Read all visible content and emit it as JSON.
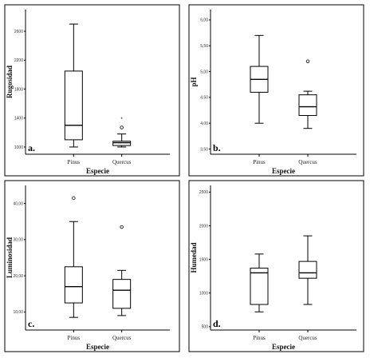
{
  "chart_data": [
    {
      "type": "boxplot",
      "panel_label": "a.",
      "ylabel": "Rugosidad",
      "xlabel": "Especie",
      "categories": [
        "Pinus",
        "Quercus"
      ],
      "ylim": [
        900,
        2900
      ],
      "yticks": [
        1000,
        1400,
        1800,
        2200,
        2600
      ],
      "tick_labels": [
        "1000",
        "1400",
        "1800",
        "2200",
        "2600"
      ],
      "boxes": [
        {
          "category": "Pinus",
          "min": 1000,
          "q1": 1100,
          "median": 1300,
          "q3": 2050,
          "max": 2700,
          "outliers": [],
          "extremes": []
        },
        {
          "category": "Quercus",
          "min": 1000,
          "q1": 1020,
          "median": 1060,
          "q3": 1080,
          "max": 1180,
          "outliers": [
            1270
          ],
          "extremes": [
            1390
          ]
        }
      ]
    },
    {
      "type": "boxplot",
      "panel_label": "b.",
      "ylabel": "pH",
      "xlabel": "Especie",
      "categories": [
        "Pinus",
        "Quercus"
      ],
      "ylim": [
        3.4,
        6.2
      ],
      "yticks": [
        3.5,
        4.0,
        4.5,
        5.0,
        5.5,
        6.0
      ],
      "tick_labels": [
        "3,50",
        "4,00",
        "4,50",
        "5,00",
        "5,50",
        "6,00"
      ],
      "boxes": [
        {
          "category": "Pinus",
          "min": 4.0,
          "q1": 4.6,
          "median": 4.85,
          "q3": 5.1,
          "max": 5.7,
          "outliers": [],
          "extremes": []
        },
        {
          "category": "Quercus",
          "min": 3.9,
          "q1": 4.15,
          "median": 4.32,
          "q3": 4.55,
          "max": 4.62,
          "outliers": [
            5.2
          ],
          "extremes": []
        }
      ]
    },
    {
      "type": "boxplot",
      "panel_label": "c.",
      "ylabel": "Luminosidad",
      "xlabel": "Especie",
      "categories": [
        "Pinus",
        "Quercus"
      ],
      "ylim": [
        5,
        45
      ],
      "yticks": [
        10,
        20,
        30,
        40
      ],
      "tick_labels": [
        "10,00",
        "20,00",
        "30,00",
        "40,00"
      ],
      "boxes": [
        {
          "category": "Pinus",
          "min": 8.5,
          "q1": 12.5,
          "median": 17,
          "q3": 22.5,
          "max": 35,
          "outliers": [
            41.5
          ],
          "extremes": []
        },
        {
          "category": "Quercus",
          "min": 9,
          "q1": 11,
          "median": 16,
          "q3": 19,
          "max": 21.5,
          "outliers": [
            33.5
          ],
          "extremes": []
        }
      ]
    },
    {
      "type": "boxplot",
      "panel_label": "d.",
      "ylabel": "Humedad",
      "xlabel": "Especie",
      "categories": [
        "Pinus",
        "Quercus"
      ],
      "ylim": [
        450,
        2600
      ],
      "yticks": [
        500,
        1000,
        1500,
        2000,
        2500
      ],
      "tick_labels": [
        "500",
        "1000",
        "1500",
        "2000",
        "2500"
      ],
      "boxes": [
        {
          "category": "Pinus",
          "min": 720,
          "q1": 830,
          "median": 1300,
          "q3": 1370,
          "max": 1580,
          "outliers": [],
          "extremes": []
        },
        {
          "category": "Quercus",
          "min": 830,
          "q1": 1220,
          "median": 1300,
          "q3": 1470,
          "max": 1850,
          "outliers": [],
          "extremes": []
        }
      ]
    }
  ],
  "symbols": {
    "outlier": "○",
    "extreme": "*"
  }
}
